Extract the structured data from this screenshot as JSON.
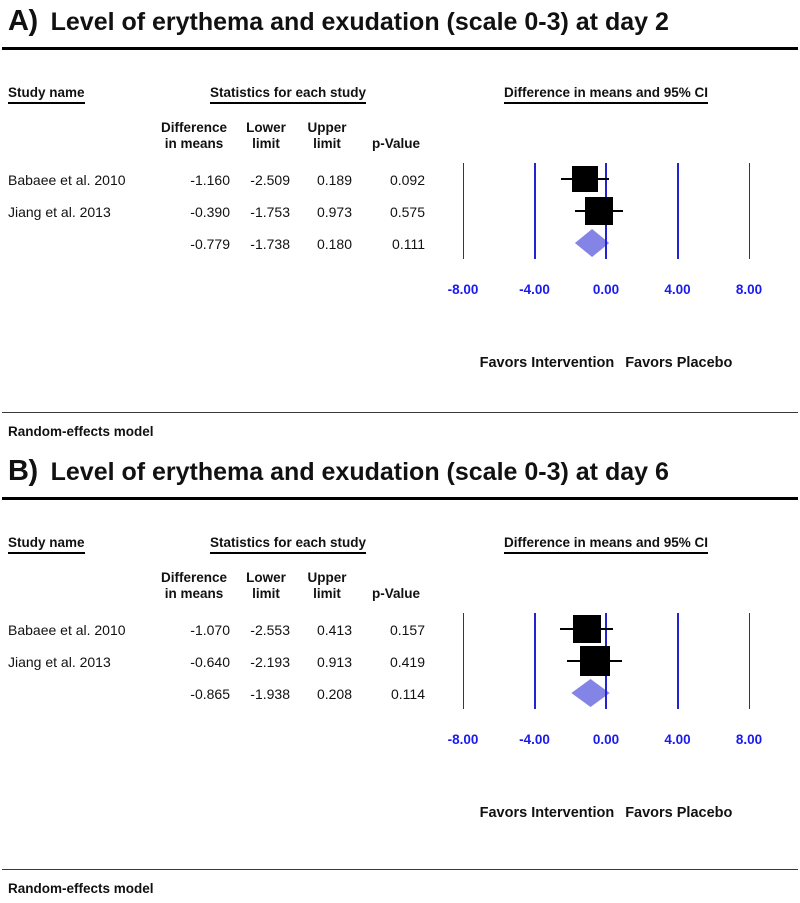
{
  "colors": {
    "axis_line_blue": "#2323d2",
    "axis_label_blue": "#1a1af0",
    "pooled_diamond_fill": "#8484e6",
    "study_marker_black": "#000000"
  },
  "chart_data": [
    {
      "type": "forest",
      "panel_label": "A)",
      "title": "Level of erythema and exudation (scale 0-3) at day 2",
      "headers": {
        "study": "Study name",
        "stats_group": "Statistics for each study",
        "ci_group": "Difference in means and 95% CI",
        "mean_line1": "Difference",
        "mean_line2": "in means",
        "lower_line1": "Lower",
        "lower_line2": "limit",
        "upper_line1": "Upper",
        "upper_line2": "limit",
        "p": "p-Value"
      },
      "rows": [
        {
          "study": "Babaee et al. 2010",
          "mean": "-1.160",
          "lower": "-2.509",
          "upper": "0.189",
          "p": "0.092",
          "marker": "square",
          "marker_size": 26
        },
        {
          "study": "Jiang et al. 2013",
          "mean": "-0.390",
          "lower": "-1.753",
          "upper": "0.973",
          "p": "0.575",
          "marker": "square",
          "marker_size": 28
        },
        {
          "study": "",
          "mean": "-0.779",
          "lower": "-1.738",
          "upper": "0.180",
          "p": "0.111",
          "marker": "diamond",
          "marker_size": 28
        }
      ],
      "axis": {
        "min": -8,
        "max": 8,
        "tick_labels": [
          "-8.00",
          "-4.00",
          "0.00",
          "4.00",
          "8.00"
        ],
        "grid": "vertical-reference-lines",
        "legend": "none"
      },
      "favors_left": "Favors Intervention",
      "favors_right": "Favors Placebo",
      "model_label": "Random-effects model"
    },
    {
      "type": "forest",
      "panel_label": "B)",
      "title": "Level of erythema and exudation (scale 0-3) at day 6",
      "headers": {
        "study": "Study name",
        "stats_group": "Statistics for each study",
        "ci_group": "Difference in means and 95% CI",
        "mean_line1": "Difference",
        "mean_line2": "in means",
        "lower_line1": "Lower",
        "lower_line2": "limit",
        "upper_line1": "Upper",
        "upper_line2": "limit",
        "p": "p-Value"
      },
      "rows": [
        {
          "study": "Babaee et al. 2010",
          "mean": "-1.070",
          "lower": "-2.553",
          "upper": "0.413",
          "p": "0.157",
          "marker": "square",
          "marker_size": 28
        },
        {
          "study": "Jiang et al. 2013",
          "mean": "-0.640",
          "lower": "-2.193",
          "upper": "0.913",
          "p": "0.419",
          "marker": "square",
          "marker_size": 30
        },
        {
          "study": "",
          "mean": "-0.865",
          "lower": "-1.938",
          "upper": "0.208",
          "p": "0.114",
          "marker": "diamond",
          "marker_size": 30
        }
      ],
      "axis": {
        "min": -8,
        "max": 8,
        "tick_labels": [
          "-8.00",
          "-4.00",
          "0.00",
          "4.00",
          "8.00"
        ],
        "grid": "vertical-reference-lines",
        "legend": "none"
      },
      "favors_left": "Favors Intervention",
      "favors_right": "Favors Placebo",
      "model_label": "Random-effects model"
    }
  ]
}
